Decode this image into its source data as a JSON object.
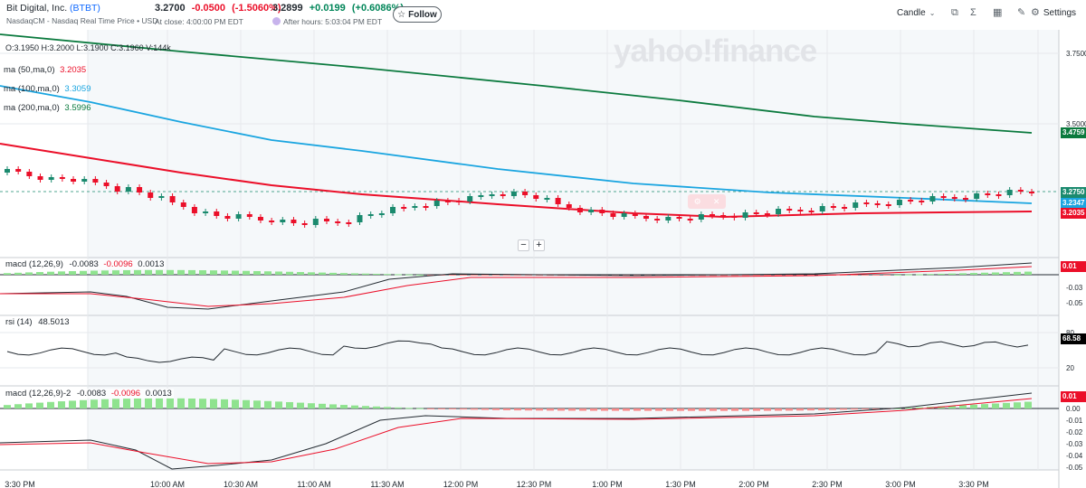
{
  "header": {
    "company": "Bit Digital, Inc.",
    "ticker": "(BTBT)",
    "exchange_line": "NasdaqCM - Nasdaq Real Time Price • USD",
    "price": "3.2700",
    "change": "-0.0500",
    "change_pct": "(-1.5060%)",
    "close_time": "At close: 4:00:00 PM EDT",
    "ah_price": "3.2899",
    "ah_change": "+0.0199",
    "ah_change_pct": "(+0.6086%)",
    "ah_time": "After hours: 5:03:04 PM EDT",
    "follow_label": "Follow"
  },
  "toolbar": {
    "chart_type": "Candle",
    "settings_label": "Settings"
  },
  "main_panel": {
    "ohlc": "O:3.1950  H:3.2000  L:3.1900  C:3.1960  V:144k",
    "watermark": "yahoo!finance",
    "ma_labels": [
      {
        "name": "ma (50,ma,0)",
        "value": "3.2035",
        "color": "#eb0f29"
      },
      {
        "name": "ma (100,ma,0)",
        "value": "3.3059",
        "color": "#1aa5e0"
      },
      {
        "name": "ma (200,ma,0)",
        "value": "3.5996",
        "color": "#0b7a3e"
      }
    ],
    "y_ticks": [
      "3.7500",
      "3.5000"
    ],
    "badges": [
      "3.4759",
      "3.2750",
      "3.2347",
      "3.2035"
    ]
  },
  "macd_panel": {
    "label": "macd (12,26,9)",
    "values": [
      "-0.0083",
      "-0.0096",
      "0.0013"
    ],
    "badge": "0.01",
    "y_ticks": [
      "-0.03",
      "-0.05"
    ]
  },
  "rsi_panel": {
    "label": "rsi (14)",
    "value": "48.5013",
    "badge": "68.58",
    "y_ticks": [
      "80",
      "20"
    ]
  },
  "macd2_panel": {
    "label": "macd (12,26,9)-2",
    "values": [
      "-0.0083",
      "-0.0096",
      "0.0013"
    ],
    "badge": "0.01",
    "y_ticks": [
      "0.00",
      "-0.01",
      "-0.02",
      "-0.03",
      "-0.04",
      "-0.05"
    ]
  },
  "x_axis": [
    "3:30 PM",
    "10:00 AM",
    "10:30 AM",
    "11:00 AM",
    "11:30 AM",
    "12:00 PM",
    "12:30 PM",
    "1:00 PM",
    "1:30 PM",
    "2:00 PM",
    "2:30 PM",
    "3:00 PM",
    "3:30 PM"
  ],
  "colors": {
    "up": "#1a8a6e",
    "down": "#eb0f29",
    "ma50": "#eb0f29",
    "ma100": "#1aa5e0",
    "ma200": "#0b7a3e",
    "macd_line": "#232a31",
    "signal_line": "#eb0f29",
    "hist_pos": "#8fe38f",
    "hist_neg": "#f98b8b"
  }
}
